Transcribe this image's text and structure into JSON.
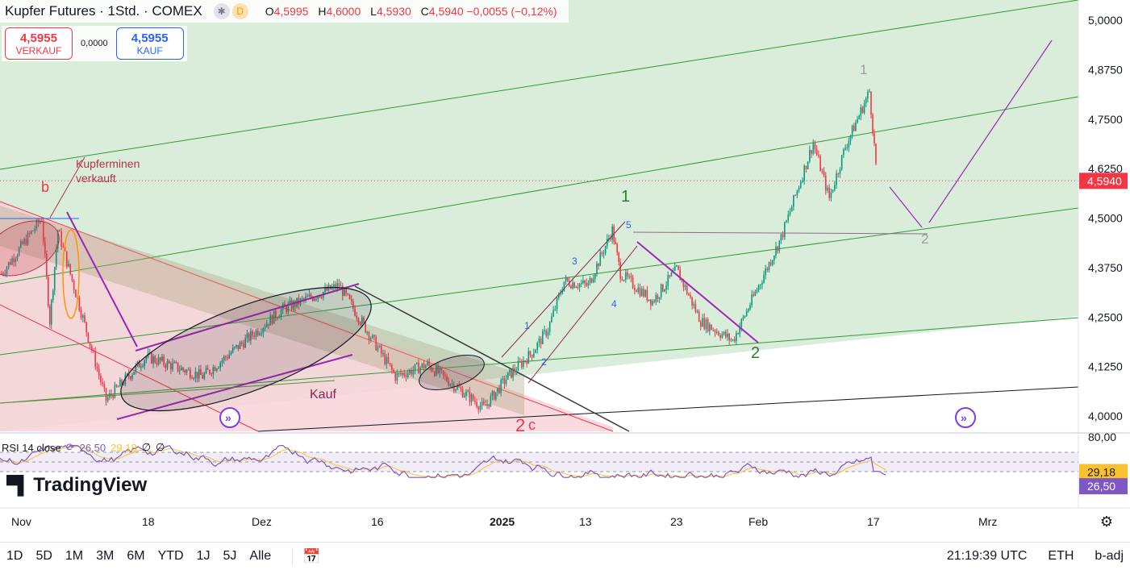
{
  "header": {
    "title": "Kupfer Futures · 1Std. · COMEX",
    "badge_icon": "snowflake-icon",
    "badge_letter": "D",
    "ohlc": [
      {
        "k": "O",
        "v": "4,5995"
      },
      {
        "k": "H",
        "v": "4,6000"
      },
      {
        "k": "L",
        "v": "4,5930"
      },
      {
        "k": "C",
        "v": "4,5940 −0,0055 (−0,12%)"
      }
    ]
  },
  "quote": {
    "sell_price": "4,5955",
    "sell_label": "VERKAUF",
    "spread": "0,0000",
    "buy_price": "4,5955",
    "buy_label": "KAUF"
  },
  "rsi": {
    "label": "RSI 14 close",
    "value": "26,50",
    "ma_value": "29,18",
    "extra1": "∅",
    "extra2": "∅",
    "axis_top": "80,00"
  },
  "logo": "TradingView",
  "bottom": {
    "ranges": [
      "1D",
      "5D",
      "1M",
      "3M",
      "6M",
      "YTD",
      "1J",
      "5J",
      "Alle"
    ],
    "time": "21:19:39 UTC",
    "session": "ETH",
    "adj": "b-adj"
  },
  "colors": {
    "down": "#f23645",
    "up": "#089981",
    "wave_green": "#2e7d32",
    "wave_red": "#f23645",
    "purple": "#9c27b0",
    "rsi_line": "#7e57c2",
    "rsi_ma": "#fbc02d"
  },
  "chart_data": {
    "type": "candlestick",
    "symbol": "Kupfer Futures",
    "interval": "1Std.",
    "exchange": "COMEX",
    "y_ticks": [
      5.0,
      4.875,
      4.75,
      4.625,
      4.5,
      4.375,
      4.25,
      4.125,
      4.0
    ],
    "y_tick_labels": [
      "5,0000",
      "4,8750",
      "4,7500",
      "4,6250",
      "4,5000",
      "4,3750",
      "4,2500",
      "4,1250",
      "4,0000"
    ],
    "ylim": [
      3.96,
      5.05
    ],
    "x_ticks": [
      "Nov",
      "18",
      "Dez",
      "16",
      "2025",
      "13",
      "23",
      "Feb",
      "17",
      "Mrz"
    ],
    "last_price": 4.594,
    "last_price_label": "4,5940",
    "price_path": [
      {
        "d": "2024-11-01",
        "p": 4.36
      },
      {
        "d": "2024-11-06",
        "p": 4.5
      },
      {
        "d": "2024-11-07",
        "p": 4.24
      },
      {
        "d": "2024-11-08",
        "p": 4.47
      },
      {
        "d": "2024-11-14",
        "p": 4.04
      },
      {
        "d": "2024-11-19",
        "p": 4.15
      },
      {
        "d": "2024-11-26",
        "p": 4.1
      },
      {
        "d": "2024-12-06",
        "p": 4.27
      },
      {
        "d": "2024-12-13",
        "p": 4.33
      },
      {
        "d": "2024-12-20",
        "p": 4.1
      },
      {
        "d": "2024-12-24",
        "p": 4.13
      },
      {
        "d": "2024-12-31",
        "p": 4.02
      },
      {
        "d": "2025-01-03",
        "p": 4.1
      },
      {
        "d": "2025-01-06",
        "p": 4.16
      },
      {
        "d": "2025-01-08",
        "p": 4.22
      },
      {
        "d": "2025-01-10",
        "p": 4.34
      },
      {
        "d": "2025-01-13",
        "p": 4.33
      },
      {
        "d": "2025-01-16",
        "p": 4.47
      },
      {
        "d": "2025-01-17",
        "p": 4.36
      },
      {
        "d": "2025-01-21",
        "p": 4.29
      },
      {
        "d": "2025-01-24",
        "p": 4.37
      },
      {
        "d": "2025-01-27",
        "p": 4.24
      },
      {
        "d": "2025-01-31",
        "p": 4.19
      },
      {
        "d": "2025-02-03",
        "p": 4.32
      },
      {
        "d": "2025-02-06",
        "p": 4.45
      },
      {
        "d": "2025-02-10",
        "p": 4.69
      },
      {
        "d": "2025-02-12",
        "p": 4.55
      },
      {
        "d": "2025-02-14",
        "p": 4.68
      },
      {
        "d": "2025-02-17",
        "p": 4.82
      },
      {
        "d": "2025-02-18",
        "p": 4.59
      }
    ],
    "rsi_series": {
      "name": "RSI 14 close",
      "upper": 70,
      "lower": 30,
      "last": 26.5,
      "ma_last": 29.18
    },
    "annotations": [
      {
        "text": "Kupferminen",
        "color": "#b2344b"
      },
      {
        "text": "verkauft",
        "color": "#b2344b"
      },
      {
        "text": "Kauf",
        "color": "#8e2453"
      },
      {
        "text": "b",
        "color": "#f23645"
      },
      {
        "text": "1",
        "color": "#2e7d32"
      },
      {
        "text": "2",
        "color": "#2e7d32"
      },
      {
        "text": "1",
        "color": "#9e9e9e"
      },
      {
        "text": "2",
        "color": "#9e9e9e"
      },
      {
        "text": "2",
        "color": "#f23645"
      },
      {
        "text": "c",
        "color": "#f23645"
      },
      {
        "text": "1",
        "color": "#2962ff"
      },
      {
        "text": "2",
        "color": "#2962ff"
      },
      {
        "text": "3",
        "color": "#2962ff"
      },
      {
        "text": "4",
        "color": "#2962ff"
      },
      {
        "text": "5",
        "color": "#2962ff"
      }
    ]
  }
}
